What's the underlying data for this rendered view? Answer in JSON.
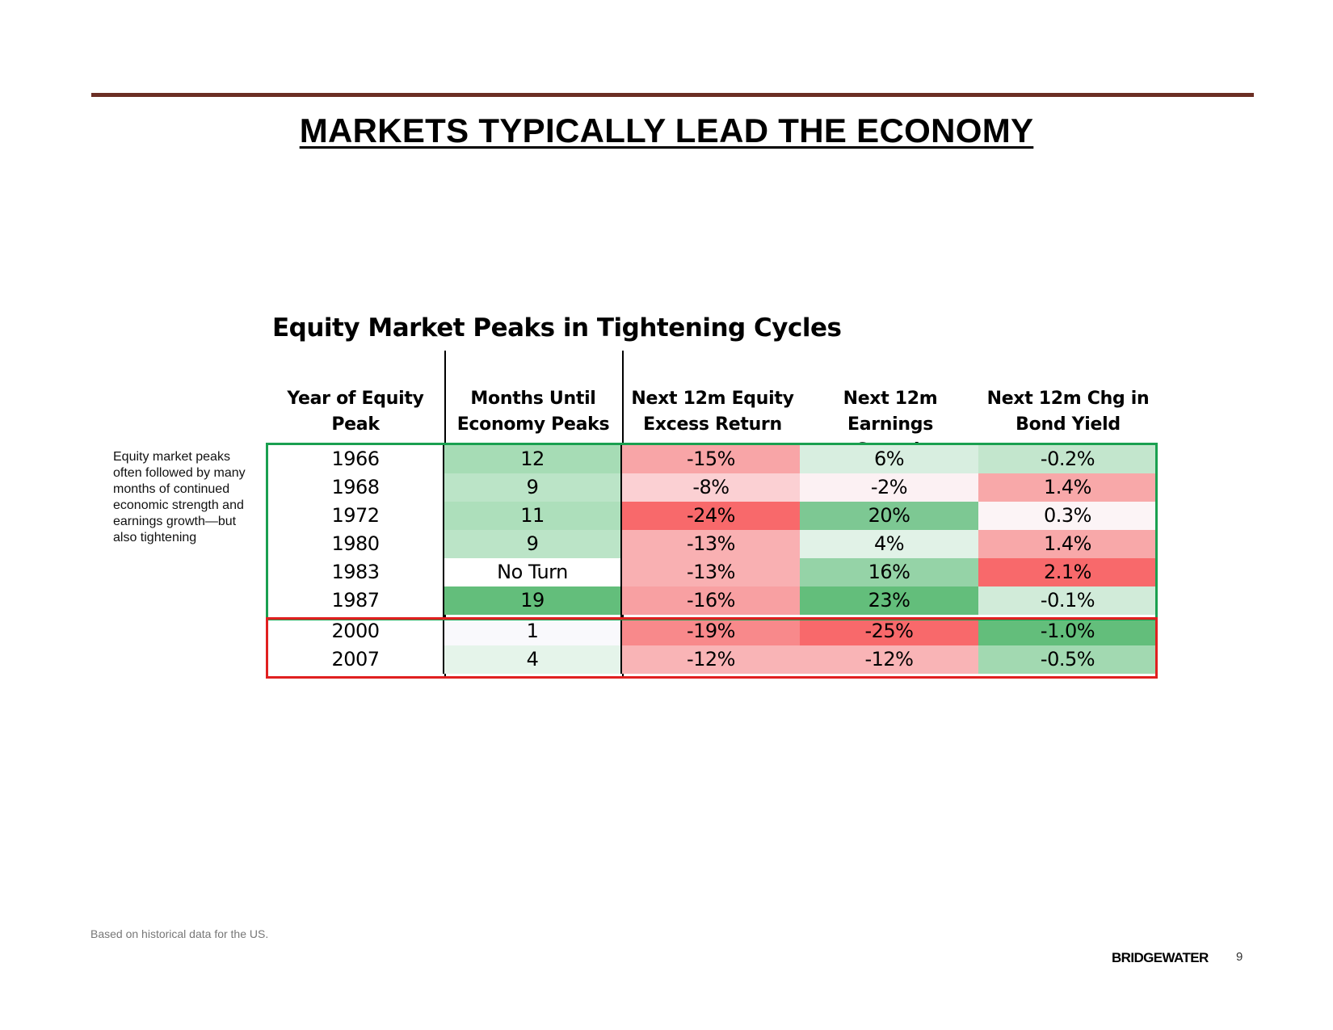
{
  "page": {
    "title": "MARKETS TYPICALLY LEAD THE ECONOMY",
    "rule_color": "#6b2e24"
  },
  "table": {
    "title": "Equity Market Peaks in Tightening Cycles",
    "headers": [
      {
        "line1": "Year of Equity",
        "line2": "Peak"
      },
      {
        "line1": "Months Until",
        "line2": "Economy Peaks"
      },
      {
        "line1": "Next 12m Equity",
        "line2": "Excess Return"
      },
      {
        "line1": "Next 12m Earnings",
        "line2": "Growth"
      },
      {
        "line1": "Next 12m Chg in",
        "line2": "Bond Yield"
      }
    ],
    "rows": [
      {
        "year": "1966",
        "months": "12",
        "equity": "-15%",
        "earnings": "6%",
        "bond": "-0.2%",
        "colors": {
          "months": "#a6dcb5",
          "equity": "#f8a5a7",
          "earnings": "#d8eee0",
          "bond": "#c3e6cd"
        }
      },
      {
        "year": "1968",
        "months": "9",
        "equity": "-8%",
        "earnings": "-2%",
        "bond": "1.4%",
        "colors": {
          "months": "#bbe4c7",
          "equity": "#fbd0d3",
          "earnings": "#fcf1f3",
          "bond": "#f8a8a9"
        }
      },
      {
        "year": "1972",
        "months": "11",
        "equity": "-24%",
        "earnings": "20%",
        "bond": "0.3%",
        "colors": {
          "months": "#addfbb",
          "equity": "#f8696b",
          "earnings": "#7dc893",
          "bond": "#fcf4f6"
        }
      },
      {
        "year": "1980",
        "months": "9",
        "equity": "-13%",
        "earnings": "4%",
        "bond": "1.4%",
        "colors": {
          "months": "#bbe4c7",
          "equity": "#f9b0b2",
          "earnings": "#e1f2e7",
          "bond": "#f8a8a9"
        }
      },
      {
        "year": "1983",
        "months": "No Turn",
        "equity": "-13%",
        "earnings": "16%",
        "bond": "2.1%",
        "colors": {
          "months": "#ffffff",
          "equity": "#f9b0b2",
          "earnings": "#95d3a7",
          "bond": "#f8696b"
        }
      },
      {
        "year": "1987",
        "months": "19",
        "equity": "-16%",
        "earnings": "23%",
        "bond": "-0.1%",
        "colors": {
          "months": "#63be7b",
          "equity": "#f8a0a2",
          "earnings": "#63be7b",
          "bond": "#d1ebd9"
        }
      },
      {
        "year": "2000",
        "months": "1",
        "equity": "-19%",
        "earnings": "-25%",
        "bond": "-1.0%",
        "colors": {
          "months": "#f9f9fc",
          "equity": "#f8898b",
          "earnings": "#f8696b",
          "bond": "#63be7b"
        }
      },
      {
        "year": "2007",
        "months": "4",
        "equity": "-12%",
        "earnings": "-12%",
        "bond": "-0.5%",
        "colors": {
          "months": "#e5f4ea",
          "equity": "#f9b4b6",
          "earnings": "#f9b4b6",
          "bond": "#a2d9b1"
        }
      }
    ],
    "green_box_color": "#1aa050",
    "red_box_color": "#e02020"
  },
  "side_note": "Equity market peaks often followed by many months of continued economic strength and earnings growth—but also tightening",
  "footnote": "Based on historical data for the US.",
  "footer": {
    "brand": "BRIDGEWATER",
    "page_number": "9"
  }
}
